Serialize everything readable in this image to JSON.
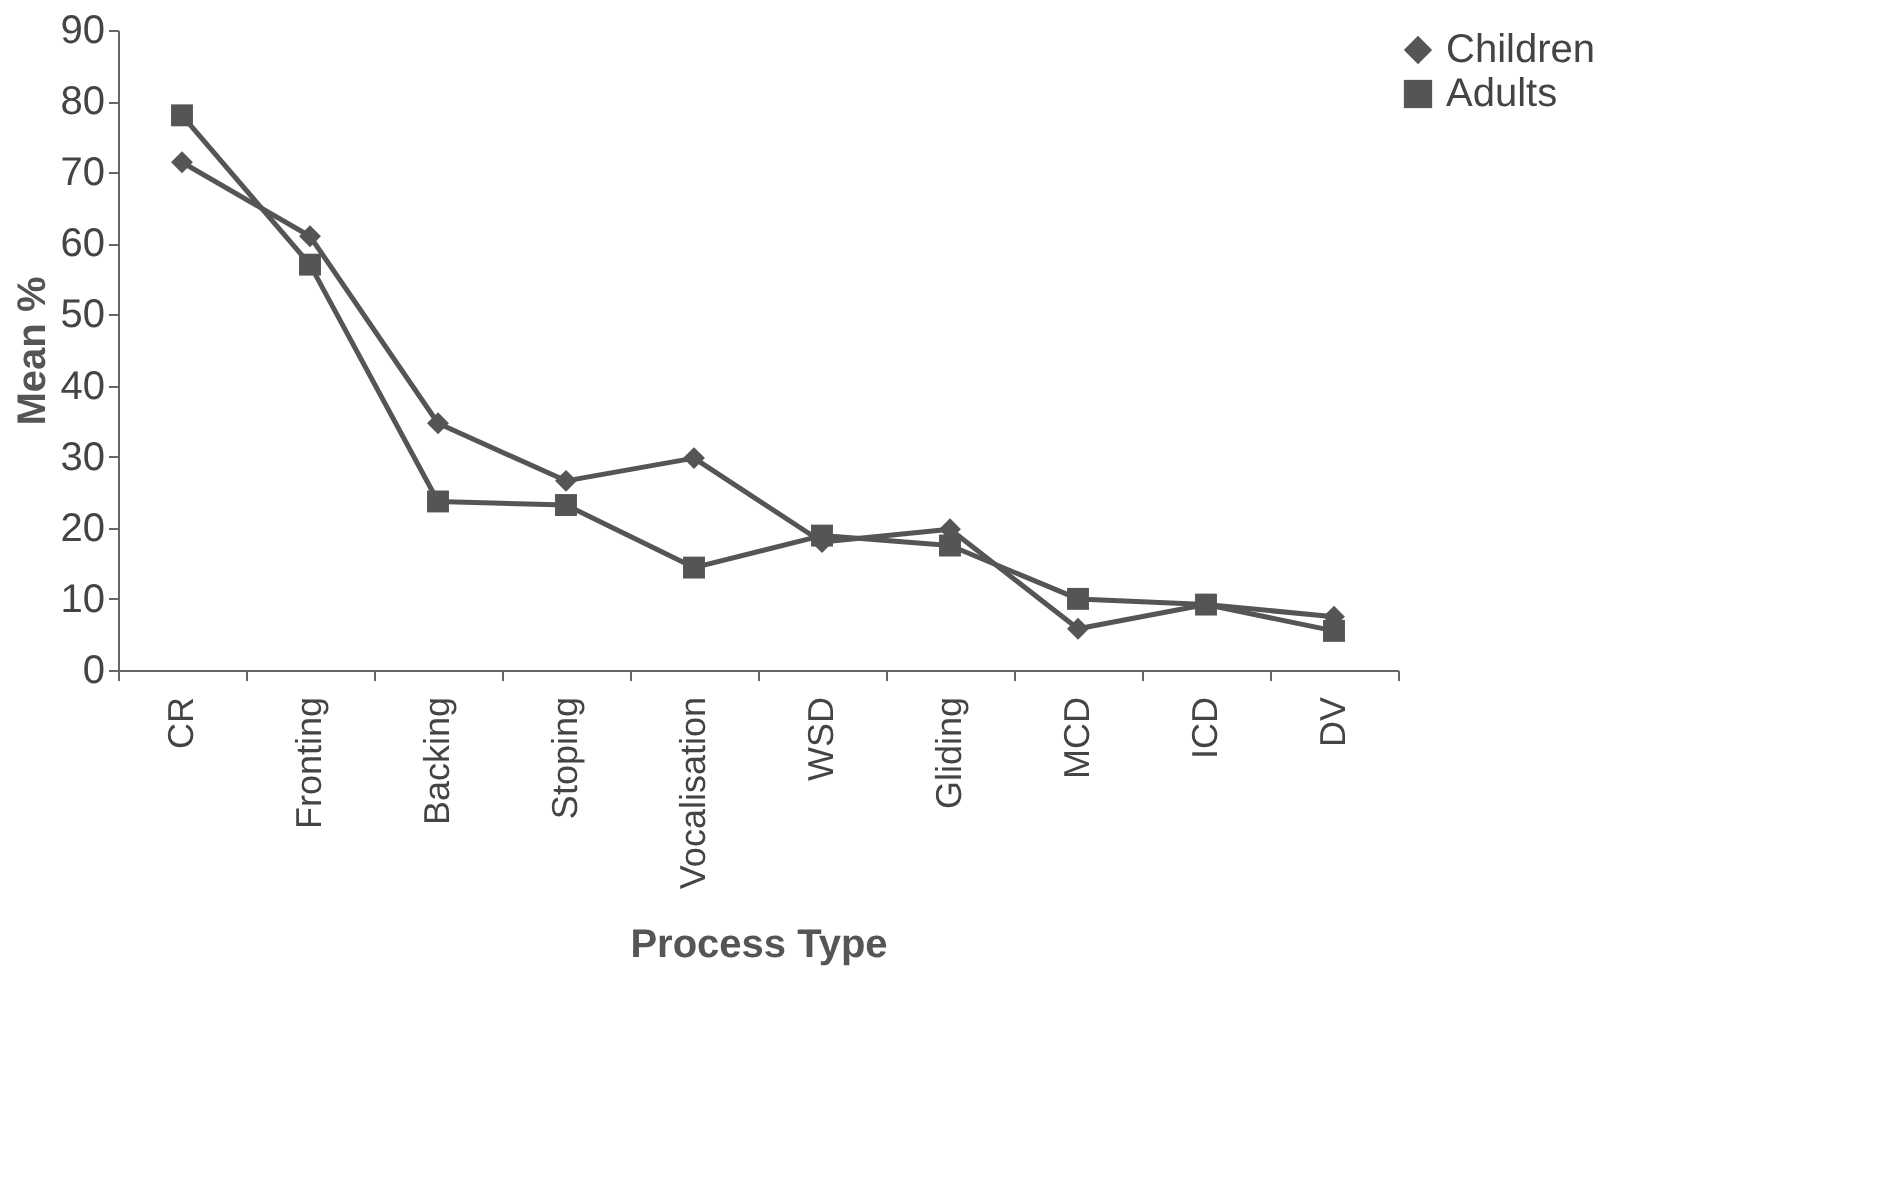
{
  "chart_data": {
    "type": "line",
    "xlabel": "Process Type",
    "ylabel": "Mean %",
    "categories": [
      "CR",
      "Fronting",
      "Backing",
      "Stoping",
      "Vocalisation",
      "WSD",
      "Gliding",
      "MCD",
      "ICD",
      "DV"
    ],
    "series": [
      {
        "name": "Children",
        "color": "#555555",
        "marker": "diamond",
        "values": [
          71.4,
          61,
          34.7,
          26.6,
          29.8,
          18,
          19.8,
          5.8,
          9.2,
          7.5
        ]
      },
      {
        "name": "Adults",
        "color": "#555555",
        "marker": "square",
        "values": [
          78,
          57,
          23.7,
          23.2,
          14.4,
          18.9,
          17.5,
          10,
          9.2,
          5.5
        ]
      }
    ],
    "ylim": [
      0,
      90
    ],
    "yticks": [
      0,
      10,
      20,
      30,
      40,
      50,
      60,
      70,
      80,
      90
    ],
    "grid": false,
    "legend": "top right",
    "line_style": "solid"
  }
}
